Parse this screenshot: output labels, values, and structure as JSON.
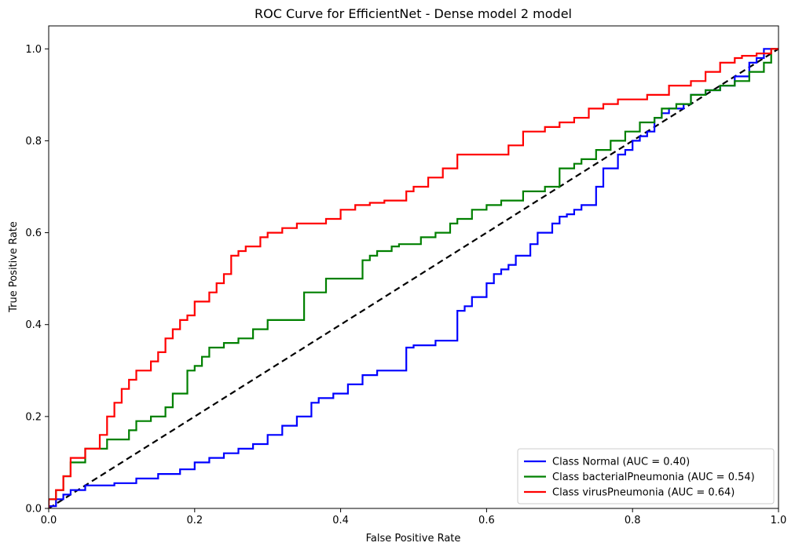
{
  "chart_data": {
    "type": "line",
    "title": "ROC Curve for EfficientNet - Dense model 2 model",
    "xlabel": "False Positive Rate",
    "ylabel": "True Positive Rate",
    "xlim": [
      0,
      1
    ],
    "ylim": [
      0,
      1.05
    ],
    "xticks": [
      0.0,
      0.2,
      0.4,
      0.6,
      0.8,
      1.0
    ],
    "yticks": [
      0.0,
      0.2,
      0.4,
      0.6,
      0.8,
      1.0
    ],
    "xtick_labels": [
      "0.0",
      "0.2",
      "0.4",
      "0.6",
      "0.8",
      "1.0"
    ],
    "ytick_labels": [
      "0.0",
      "0.2",
      "0.4",
      "0.6",
      "0.8",
      "1.0"
    ],
    "grid": false,
    "legend_position": "lower-right",
    "series": [
      {
        "name": "Class Normal (AUC = 0.40)",
        "color": "#0000ff",
        "x": [
          0,
          0.01,
          0.02,
          0.03,
          0.05,
          0.07,
          0.09,
          0.12,
          0.15,
          0.18,
          0.2,
          0.22,
          0.24,
          0.26,
          0.28,
          0.3,
          0.32,
          0.34,
          0.36,
          0.37,
          0.39,
          0.41,
          0.43,
          0.45,
          0.46,
          0.49,
          0.5,
          0.53,
          0.56,
          0.57,
          0.58,
          0.6,
          0.61,
          0.62,
          0.63,
          0.64,
          0.66,
          0.67,
          0.69,
          0.7,
          0.71,
          0.72,
          0.73,
          0.74,
          0.75,
          0.76,
          0.78,
          0.79,
          0.8,
          0.81,
          0.82,
          0.83,
          0.84,
          0.85,
          0.87,
          0.88,
          0.9,
          0.92,
          0.94,
          0.96,
          0.97,
          0.98,
          0.99,
          1.0
        ],
        "y": [
          0,
          0.005,
          0.02,
          0.03,
          0.04,
          0.05,
          0.05,
          0.055,
          0.065,
          0.075,
          0.085,
          0.1,
          0.11,
          0.12,
          0.13,
          0.14,
          0.16,
          0.18,
          0.2,
          0.23,
          0.24,
          0.25,
          0.27,
          0.29,
          0.3,
          0.3,
          0.35,
          0.355,
          0.365,
          0.43,
          0.44,
          0.46,
          0.49,
          0.51,
          0.52,
          0.53,
          0.55,
          0.575,
          0.6,
          0.62,
          0.635,
          0.64,
          0.65,
          0.66,
          0.66,
          0.7,
          0.74,
          0.77,
          0.78,
          0.8,
          0.81,
          0.82,
          0.85,
          0.86,
          0.87,
          0.88,
          0.9,
          0.91,
          0.92,
          0.94,
          0.97,
          0.98,
          1.0,
          1.0
        ]
      },
      {
        "name": "Class bacterialPneumonia (AUC = 0.54)",
        "color": "#008000",
        "x": [
          0,
          0.01,
          0.02,
          0.03,
          0.05,
          0.08,
          0.11,
          0.12,
          0.14,
          0.16,
          0.17,
          0.19,
          0.2,
          0.21,
          0.22,
          0.24,
          0.26,
          0.28,
          0.3,
          0.32,
          0.33,
          0.35,
          0.36,
          0.38,
          0.39,
          0.4,
          0.43,
          0.44,
          0.45,
          0.47,
          0.48,
          0.51,
          0.53,
          0.55,
          0.56,
          0.58,
          0.6,
          0.62,
          0.65,
          0.68,
          0.7,
          0.72,
          0.73,
          0.75,
          0.77,
          0.78,
          0.79,
          0.81,
          0.83,
          0.84,
          0.86,
          0.88,
          0.9,
          0.92,
          0.94,
          0.96,
          0.98,
          0.99,
          1.0
        ],
        "y": [
          0,
          0.02,
          0.04,
          0.07,
          0.1,
          0.13,
          0.15,
          0.17,
          0.19,
          0.2,
          0.22,
          0.25,
          0.3,
          0.31,
          0.33,
          0.35,
          0.36,
          0.37,
          0.39,
          0.41,
          0.41,
          0.41,
          0.47,
          0.47,
          0.5,
          0.5,
          0.5,
          0.54,
          0.55,
          0.56,
          0.57,
          0.575,
          0.59,
          0.6,
          0.62,
          0.63,
          0.65,
          0.66,
          0.67,
          0.69,
          0.7,
          0.74,
          0.75,
          0.76,
          0.78,
          0.8,
          0.8,
          0.82,
          0.84,
          0.85,
          0.87,
          0.88,
          0.9,
          0.91,
          0.92,
          0.93,
          0.95,
          0.97,
          1.0
        ]
      },
      {
        "name": "Class virusPneumonia (AUC = 0.64)",
        "color": "#ff0000",
        "x": [
          0,
          0.01,
          0.02,
          0.03,
          0.05,
          0.07,
          0.08,
          0.09,
          0.1,
          0.11,
          0.12,
          0.14,
          0.15,
          0.16,
          0.17,
          0.18,
          0.19,
          0.2,
          0.22,
          0.23,
          0.24,
          0.25,
          0.26,
          0.27,
          0.29,
          0.3,
          0.32,
          0.34,
          0.36,
          0.38,
          0.4,
          0.42,
          0.44,
          0.46,
          0.49,
          0.5,
          0.52,
          0.54,
          0.56,
          0.58,
          0.6,
          0.63,
          0.65,
          0.66,
          0.68,
          0.7,
          0.72,
          0.74,
          0.76,
          0.78,
          0.8,
          0.82,
          0.85,
          0.88,
          0.9,
          0.92,
          0.94,
          0.95,
          0.97,
          0.99,
          1.0
        ],
        "y": [
          0,
          0.02,
          0.04,
          0.07,
          0.11,
          0.13,
          0.16,
          0.2,
          0.23,
          0.26,
          0.28,
          0.3,
          0.32,
          0.34,
          0.37,
          0.39,
          0.41,
          0.42,
          0.45,
          0.47,
          0.49,
          0.51,
          0.55,
          0.56,
          0.57,
          0.59,
          0.6,
          0.61,
          0.62,
          0.62,
          0.63,
          0.65,
          0.66,
          0.665,
          0.67,
          0.69,
          0.7,
          0.72,
          0.74,
          0.77,
          0.77,
          0.77,
          0.79,
          0.82,
          0.82,
          0.83,
          0.84,
          0.85,
          0.87,
          0.88,
          0.89,
          0.89,
          0.9,
          0.92,
          0.93,
          0.95,
          0.97,
          0.98,
          0.985,
          0.99,
          1.0
        ]
      }
    ],
    "reference_line": {
      "x": [
        0,
        1
      ],
      "y": [
        0,
        1
      ],
      "color": "#000000",
      "style": "dashed"
    }
  }
}
